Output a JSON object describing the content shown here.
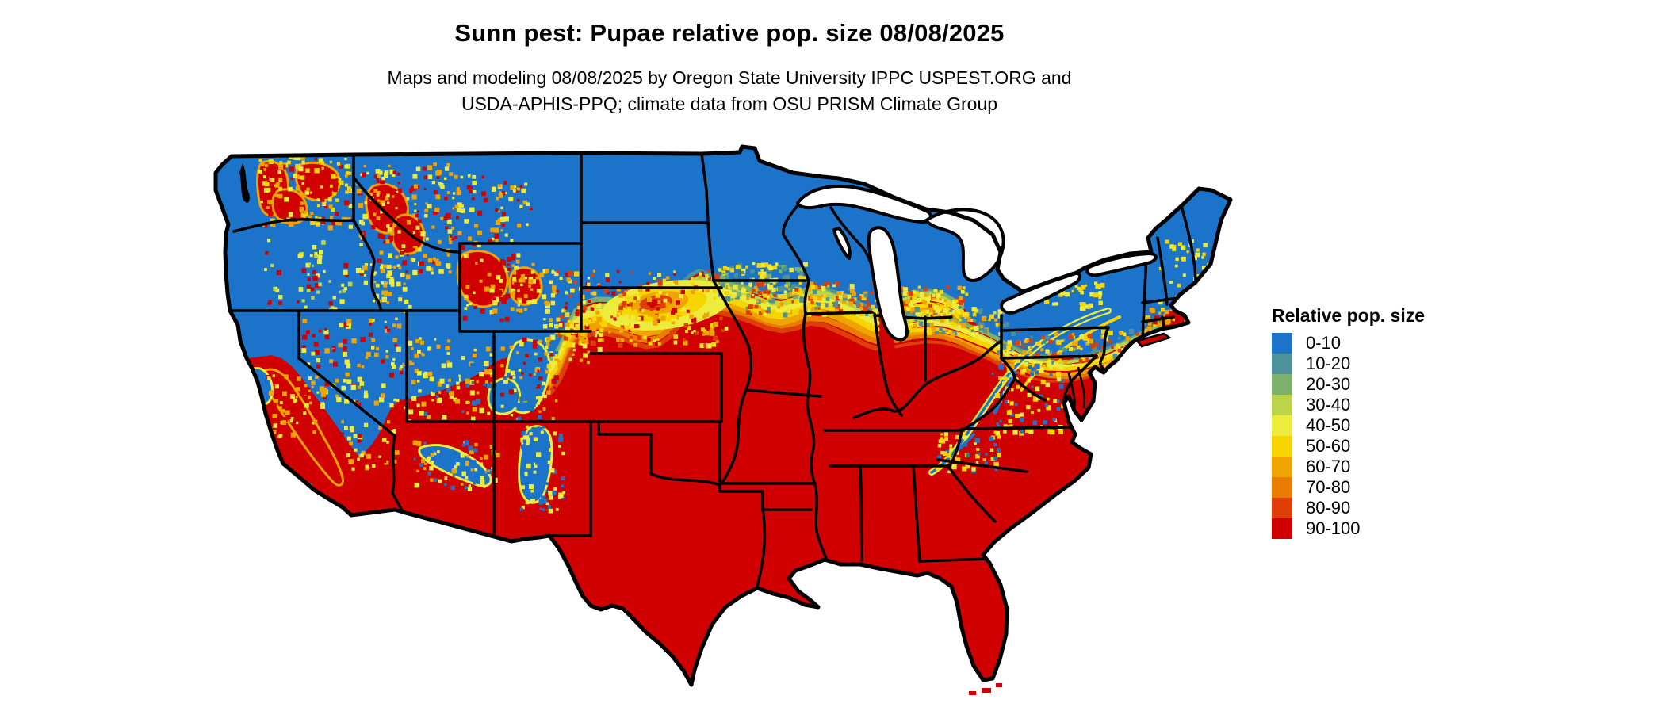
{
  "page": {
    "background": "#FFFFFF"
  },
  "header": {
    "title": "Sunn pest: Pupae relative pop. size 08/08/2025",
    "subtitle_line1": "Maps and modeling 08/08/2025 by Oregon State University IPPC USPEST.ORG and",
    "subtitle_line2": "USDA-APHIS-PPQ; climate data from OSU PRISM Climate Group"
  },
  "legend": {
    "title": "Relative pop. size",
    "items": [
      {
        "label": "0-10",
        "color": "#1B74C9"
      },
      {
        "label": "10-20",
        "color": "#4C929C"
      },
      {
        "label": "20-30",
        "color": "#7BB16C"
      },
      {
        "label": "30-40",
        "color": "#BCD44A"
      },
      {
        "label": "40-50",
        "color": "#EDEC3C"
      },
      {
        "label": "50-60",
        "color": "#F6D500"
      },
      {
        "label": "60-70",
        "color": "#F0A400"
      },
      {
        "label": "70-80",
        "color": "#E87D00"
      },
      {
        "label": "80-90",
        "color": "#DE3F08"
      },
      {
        "label": "90-100",
        "color": "#D10000"
      }
    ]
  },
  "map": {
    "region": "Continental United States",
    "kind": "raster choropleth of relative population size",
    "state_border_color": "#000000",
    "water_color": "#FFFFFF",
    "regions_summary": [
      {
        "area": "South, Southeast, Texas, lower Midwest, southern CA valleys",
        "dominant_class": "90-100"
      },
      {
        "area": "Pacific Northwest, northern Rockies, northern Plains, upper Midwest, Northeast",
        "dominant_class": "0-10"
      },
      {
        "area": "Transition band through SD, southern MN, WI, MI, northern OH and PA",
        "dominant_class": "40-70 gradient"
      },
      {
        "area": "Mountain ranges of NV, UT, CO, NM, AZ and Appalachians",
        "dominant_class": "mixed speckled"
      }
    ]
  }
}
